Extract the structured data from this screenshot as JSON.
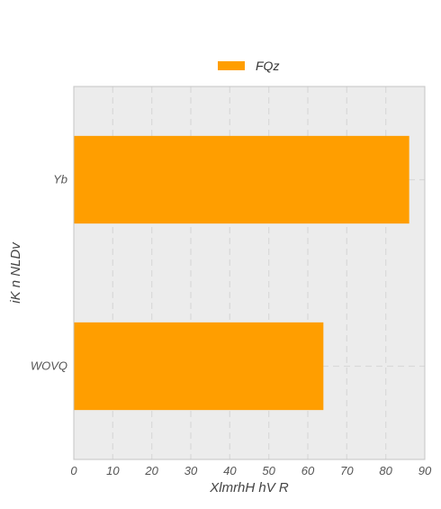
{
  "chart_data": {
    "type": "bar",
    "orientation": "horizontal",
    "categories": [
      "Yb",
      "WOVQ"
    ],
    "series": [
      {
        "name": "FQz",
        "values": [
          86,
          64
        ],
        "color": "#ff9e00"
      }
    ],
    "xlabel": "XlmrhH hV R",
    "ylabel": "iK  n NLDv",
    "xlim": [
      0,
      90
    ],
    "xticks": [
      "0",
      "10",
      "20",
      "30",
      "40",
      "50",
      "60",
      "70",
      "80",
      "90"
    ],
    "grid": true,
    "legend_position": "top-center",
    "plot_background": "#ececec",
    "grid_color": "#d9d9d9"
  }
}
